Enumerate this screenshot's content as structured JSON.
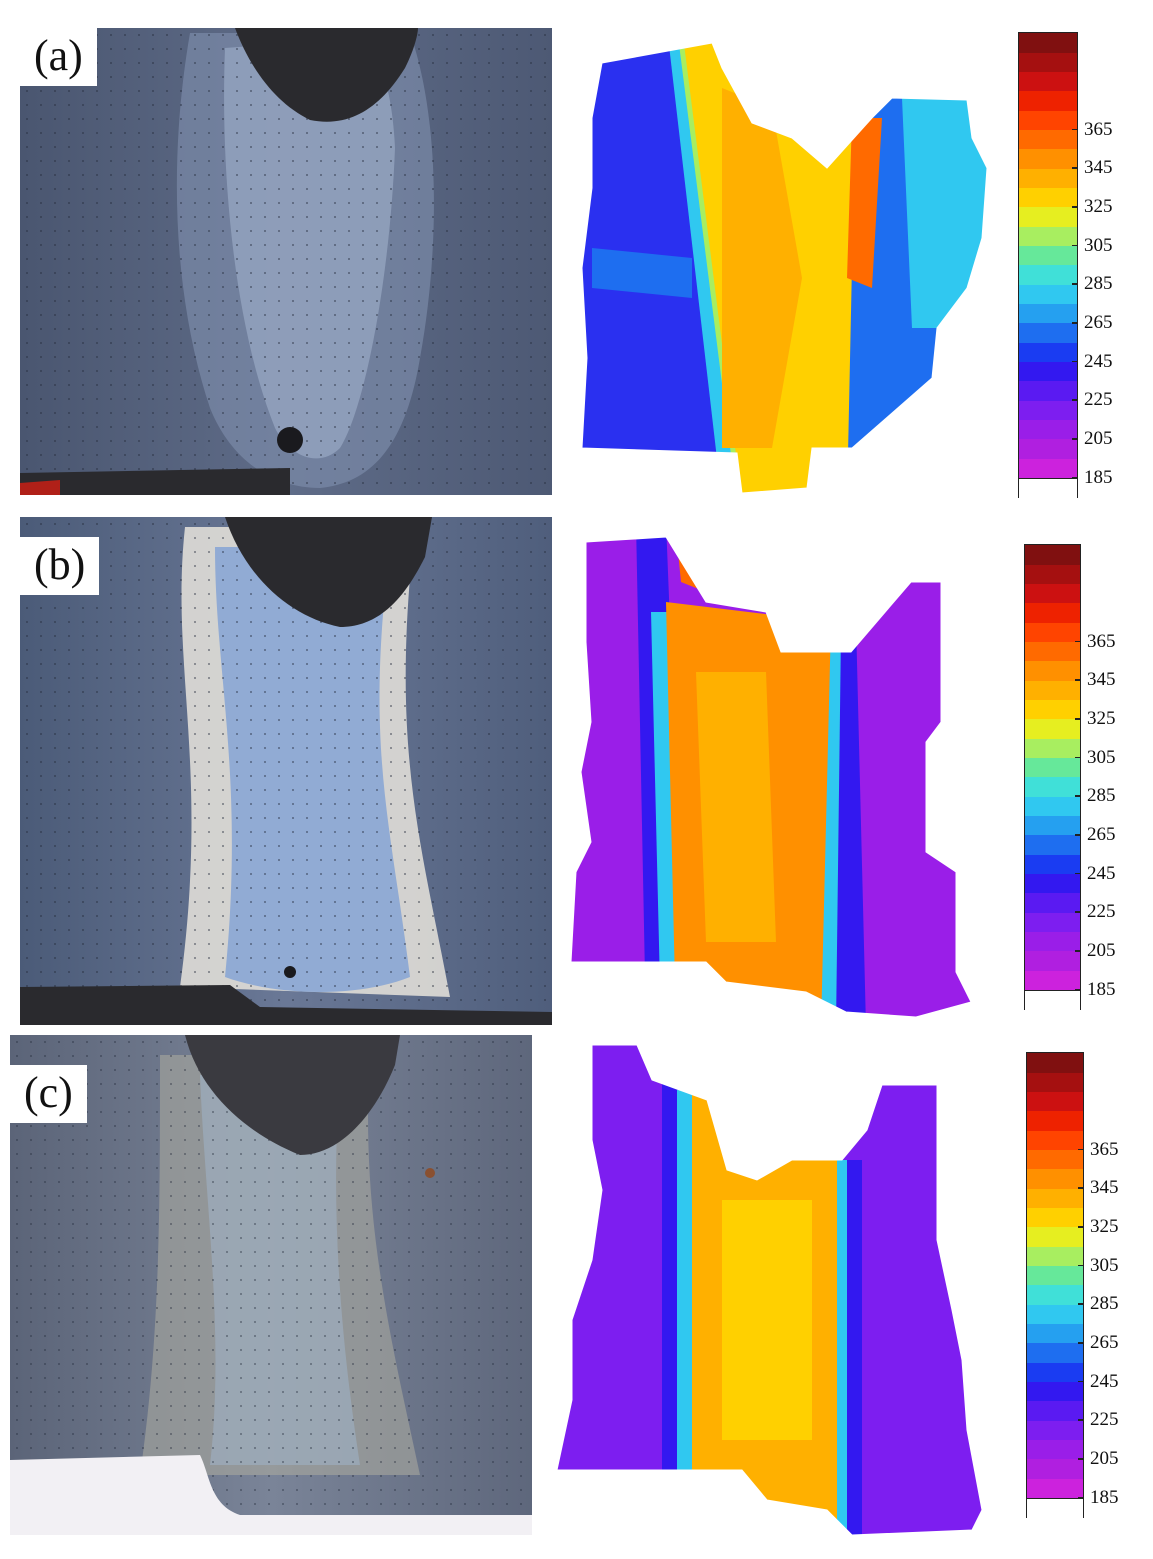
{
  "panels": [
    {
      "label": "(a)",
      "scale_ticks": [
        "365",
        "345",
        "325",
        "305",
        "285",
        "265",
        "245",
        "225",
        "205",
        "185"
      ]
    },
    {
      "label": "(b)",
      "scale_ticks": [
        "365",
        "345",
        "325",
        "305",
        "285",
        "265",
        "245",
        "225",
        "205",
        "185"
      ]
    },
    {
      "label": "(c)",
      "scale_ticks": [
        "365",
        "345",
        "325",
        "305",
        "285",
        "265",
        "245",
        "225",
        "205",
        "185"
      ]
    }
  ],
  "colormap": [
    "#ffffff",
    "#cc22dd",
    "#b01fe0",
    "#9a1ee8",
    "#7d1ef0",
    "#5a1af2",
    "#3318f0",
    "#1a3cf2",
    "#1e6ef0",
    "#25a0f0",
    "#30c8f0",
    "#40e0d8",
    "#66e89a",
    "#a8ee60",
    "#e6ee20",
    "#ffd000",
    "#ffb000",
    "#ff9000",
    "#ff6a00",
    "#ff4400",
    "#ee2200",
    "#cc1111",
    "#a51010",
    "#801010"
  ],
  "colors": {
    "steel": "#5a6a86",
    "hole": "#2a2a2e",
    "rust": "#8a5030"
  }
}
